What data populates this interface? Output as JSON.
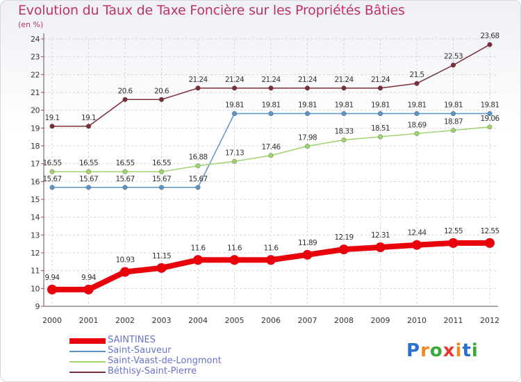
{
  "title": "Evolution du Taux de Taxe Foncière sur les Propriétés Bâties",
  "unit": "(en %)",
  "logo": {
    "letters": [
      "P",
      "r",
      "o",
      "x",
      "i",
      "t",
      "i"
    ],
    "colors": [
      "#2a6fc9",
      "#f08a1c",
      "#3aa935",
      "#e23a2e",
      "#f08a1c",
      "#2a6fc9",
      "#3aa935"
    ]
  },
  "chart_data": {
    "type": "line",
    "x": [
      "2000",
      "2001",
      "2002",
      "2003",
      "2004",
      "2005",
      "2006",
      "2007",
      "2008",
      "2009",
      "2010",
      "2011",
      "2012"
    ],
    "ylim": [
      9,
      24
    ],
    "yticks": [
      9,
      10,
      11,
      12,
      13,
      14,
      15,
      16,
      17,
      18,
      19,
      20,
      21,
      22,
      23,
      24
    ],
    "grid": true,
    "legend_position": "bottom-left",
    "series": [
      {
        "name": "SAINTINES",
        "color": "#e8000b",
        "width": 8,
        "values": [
          9.94,
          9.94,
          10.93,
          11.15,
          11.6,
          11.6,
          11.6,
          11.89,
          12.19,
          12.31,
          12.44,
          12.55,
          12.55
        ],
        "labels": [
          "9.94",
          "9.94",
          "10.93",
          "11.15",
          "11.6",
          "11.6",
          "11.6",
          "11.89",
          "12.19",
          "12.31",
          "12.44",
          "12.55",
          "12.55"
        ]
      },
      {
        "name": "Saint-Sauveur",
        "color": "#5b95c7",
        "width": 1.5,
        "values": [
          15.67,
          15.67,
          15.67,
          15.67,
          15.67,
          19.81,
          19.81,
          19.81,
          19.81,
          19.81,
          19.81,
          19.81,
          19.81
        ],
        "labels": [
          "15.67",
          "15.67",
          "15.67",
          "15.67",
          "15.67",
          "19.81",
          "19.81",
          "19.81",
          "19.81",
          "19.81",
          "19.81",
          "19.81",
          "19.81"
        ]
      },
      {
        "name": "Saint-Vaast-de-Longmont",
        "color": "#9fd36b",
        "width": 1.5,
        "values": [
          16.55,
          16.55,
          16.55,
          16.55,
          16.88,
          17.13,
          17.46,
          17.98,
          18.33,
          18.51,
          18.69,
          18.87,
          19.06
        ],
        "labels": [
          "16.55",
          "16.55",
          "16.55",
          "16.55",
          "16.88",
          "17.13",
          "17.46",
          "17.98",
          "18.33",
          "18.51",
          "18.69",
          "18.87",
          "19.06"
        ]
      },
      {
        "name": "Béthisy-Saint-Pierre",
        "color": "#7a2f36",
        "width": 1.5,
        "values": [
          19.1,
          19.1,
          20.6,
          20.6,
          21.24,
          21.24,
          21.24,
          21.24,
          21.24,
          21.24,
          21.5,
          22.53,
          23.68
        ],
        "labels": [
          "19.1",
          "19.1",
          "20.6",
          "20.6",
          "21.24",
          "21.24",
          "21.24",
          "21.24",
          "21.24",
          "21.24",
          "21.5",
          "22.53",
          "23.68"
        ]
      }
    ]
  }
}
